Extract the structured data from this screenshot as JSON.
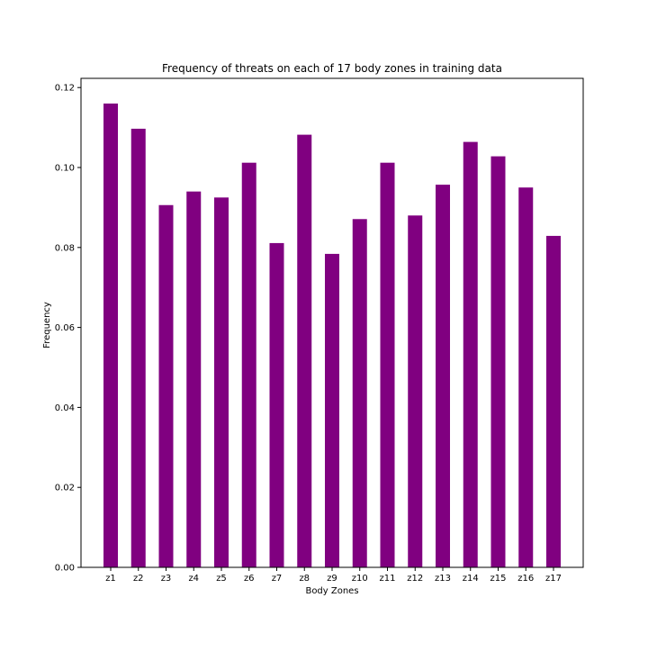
{
  "chart_data": {
    "type": "bar",
    "title": "Frequency of threats on each of 17 body zones in training data",
    "xlabel": "Body Zones",
    "ylabel": "Frequency",
    "categories": [
      "z1",
      "z2",
      "z3",
      "z4",
      "z5",
      "z6",
      "z7",
      "z8",
      "z9",
      "z10",
      "z11",
      "z12",
      "z13",
      "z14",
      "z15",
      "z16",
      "z17"
    ],
    "values": [
      0.116,
      0.1097,
      0.0906,
      0.094,
      0.0925,
      0.1012,
      0.0811,
      0.1082,
      0.0784,
      0.0871,
      0.1012,
      0.088,
      0.0957,
      0.1064,
      0.1028,
      0.095,
      0.0829
    ],
    "ylim": [
      0,
      0.1223
    ],
    "yticks": [
      0.0,
      0.02,
      0.04,
      0.06,
      0.08,
      0.1,
      0.12
    ],
    "ytick_labels": [
      "0.00",
      "0.02",
      "0.04",
      "0.06",
      "0.08",
      "0.10",
      "0.12"
    ],
    "bar_color": "#800080",
    "grid": false,
    "legend": false
  }
}
